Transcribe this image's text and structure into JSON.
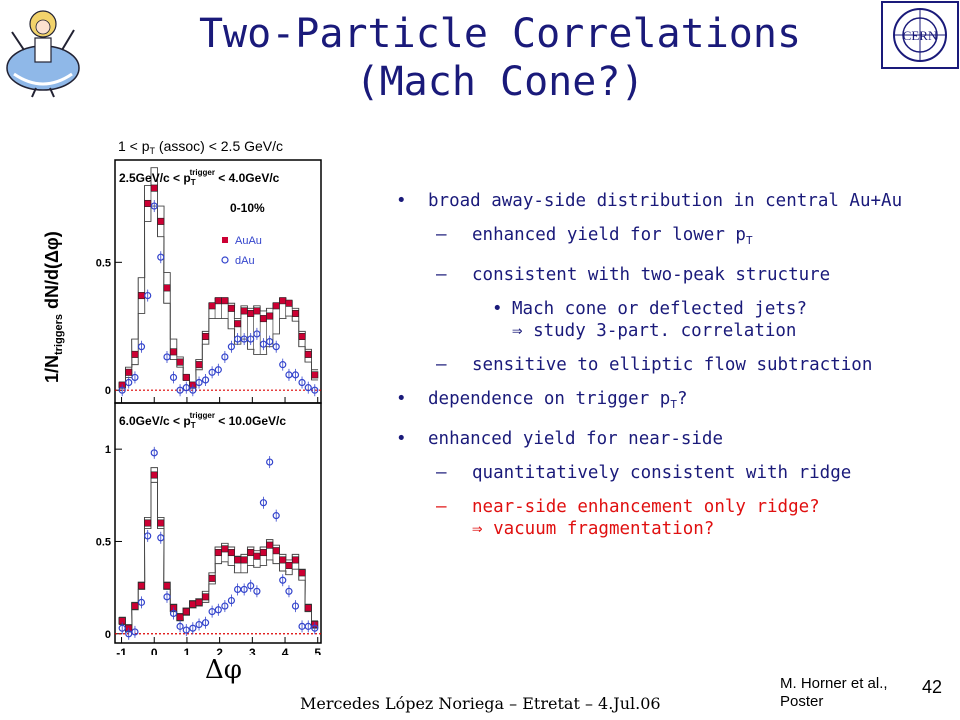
{
  "slide": {
    "title_line1": "Two-Particle Correlations",
    "title_line2": "(Mach Cone?)",
    "footer": "Mercedes López Noriega – Etretat – 4.Jul.06",
    "reference_line1": "M. Horner et al.,",
    "reference_line2": "Poster",
    "page_number": "42"
  },
  "bullets": {
    "b1": "broad away-side distribution in central Au+Au",
    "b1_1_pre": "enhanced yield for lower p",
    "b1_1_sub": "T",
    "b1_2": "consistent with two-peak structure",
    "b1_2_1a": "Mach cone or deflected jets?",
    "b1_2_1b": "⇒ study 3-part. correlation",
    "b1_3": "sensitive to elliptic flow subtraction",
    "b2_pre": "dependence on trigger p",
    "b2_sub": "T",
    "b2_post": "?",
    "b3": "enhanced yield for near-side",
    "b3_1": "quantitatively consistent with ridge",
    "b3_2a": "near-side enhancement only ridge?",
    "b3_2b": "⇒ vacuum fragmentation?",
    "red_color": "#e01010"
  },
  "chart_data": [
    {
      "type": "scatter",
      "header_pre": "1 < p",
      "header_sub": "T",
      "header_post": " (assoc) < 2.5 GeV/c",
      "ylabel_pre": "1/N",
      "ylabel_sub": "triggers",
      "ylabel_post": " dN/d(Δφ)",
      "xlabel": "Δφ",
      "panel_label": "2.5GeV/c < p",
      "panel_label_sub": "T",
      "panel_label_sup": "trigger",
      "panel_label_post": " < 4.0GeV/c",
      "centrality": "0-10%",
      "legend": [
        "AuAu",
        "dAu"
      ],
      "ylim": [
        -0.05,
        0.9
      ],
      "yticks": [
        {
          "v": 0,
          "label": "0"
        },
        {
          "v": 0.5,
          "label": "0.5"
        }
      ],
      "xlim": [
        -1.2,
        5.1
      ],
      "x": [
        -0.98,
        -0.78,
        -0.59,
        -0.39,
        -0.2,
        0.0,
        0.2,
        0.39,
        0.59,
        0.79,
        0.98,
        1.18,
        1.37,
        1.57,
        1.77,
        1.96,
        2.16,
        2.36,
        2.55,
        2.75,
        2.95,
        3.14,
        3.34,
        3.53,
        3.73,
        3.93,
        4.12,
        4.32,
        4.52,
        4.71,
        4.91
      ],
      "series": [
        {
          "name": "AuAu",
          "color": "#cc0033",
          "marker": "square",
          "values": [
            0.02,
            0.07,
            0.14,
            0.37,
            0.73,
            0.79,
            0.66,
            0.4,
            0.15,
            0.11,
            0.05,
            0.02,
            0.1,
            0.21,
            0.33,
            0.35,
            0.35,
            0.32,
            0.26,
            0.31,
            0.3,
            0.31,
            0.28,
            0.29,
            0.33,
            0.35,
            0.34,
            0.3,
            0.21,
            0.14,
            0.06
          ]
        },
        {
          "name": "dAu",
          "color": "#3344cc",
          "marker": "circle",
          "values": [
            0.0,
            0.03,
            0.05,
            0.17,
            0.37,
            0.72,
            0.52,
            0.13,
            0.05,
            0.0,
            0.01,
            0.0,
            0.03,
            0.04,
            0.07,
            0.08,
            0.13,
            0.17,
            0.2,
            0.2,
            0.2,
            0.22,
            0.18,
            0.19,
            0.17,
            0.1,
            0.06,
            0.06,
            0.03,
            0.01,
            0.0
          ]
        }
      ],
      "band_upper": [
        0.03,
        0.09,
        0.2,
        0.44,
        0.8,
        0.87,
        0.72,
        0.46,
        0.2,
        0.13,
        0.06,
        0.03,
        0.12,
        0.23,
        0.34,
        0.36,
        0.36,
        0.34,
        0.28,
        0.33,
        0.32,
        0.33,
        0.31,
        0.32,
        0.34,
        0.36,
        0.35,
        0.32,
        0.23,
        0.16,
        0.08
      ],
      "band_lower": [
        0.01,
        0.05,
        0.1,
        0.3,
        0.66,
        0.72,
        0.6,
        0.34,
        0.12,
        0.09,
        0.04,
        0.01,
        0.08,
        0.18,
        0.28,
        0.28,
        0.28,
        0.24,
        0.18,
        0.2,
        0.16,
        0.14,
        0.14,
        0.17,
        0.22,
        0.28,
        0.29,
        0.27,
        0.17,
        0.11,
        0.04
      ],
      "zero_line": {
        "style": "dotted",
        "color": "#dd0000"
      }
    },
    {
      "type": "scatter",
      "panel_label": "6.0GeV/c < p",
      "panel_label_sub": "T",
      "panel_label_sup": "trigger",
      "panel_label_post": " < 10.0GeV/c",
      "ylim": [
        -0.05,
        1.25
      ],
      "yticks": [
        {
          "v": 0,
          "label": "0"
        },
        {
          "v": 0.5,
          "label": "0.5"
        },
        {
          "v": 1,
          "label": "1"
        }
      ],
      "xlim": [
        -1.2,
        5.1
      ],
      "xticks": [
        {
          "v": -1,
          "label": "-1"
        },
        {
          "v": 0,
          "label": "0"
        },
        {
          "v": 1,
          "label": "1"
        },
        {
          "v": 2,
          "label": "2"
        },
        {
          "v": 3,
          "label": "3"
        },
        {
          "v": 4,
          "label": "4"
        },
        {
          "v": 5,
          "label": "5"
        }
      ],
      "x": [
        -0.98,
        -0.78,
        -0.59,
        -0.39,
        -0.2,
        0.0,
        0.2,
        0.39,
        0.59,
        0.79,
        0.98,
        1.18,
        1.37,
        1.57,
        1.77,
        1.96,
        2.16,
        2.36,
        2.55,
        2.75,
        2.95,
        3.14,
        3.34,
        3.53,
        3.73,
        3.93,
        4.12,
        4.32,
        4.52,
        4.71,
        4.91
      ],
      "series": [
        {
          "name": "AuAu",
          "color": "#cc0033",
          "marker": "square",
          "values": [
            0.07,
            0.03,
            0.15,
            0.26,
            0.6,
            0.86,
            0.6,
            0.26,
            0.14,
            0.09,
            0.12,
            0.16,
            0.17,
            0.2,
            0.3,
            0.44,
            0.46,
            0.44,
            0.4,
            0.4,
            0.44,
            0.42,
            0.44,
            0.48,
            0.45,
            0.4,
            0.37,
            0.4,
            0.33,
            0.14,
            0.05
          ]
        },
        {
          "name": "dAu",
          "color": "#3344cc",
          "marker": "circle",
          "values": [
            0.03,
            0.0,
            0.01,
            0.17,
            0.53,
            0.98,
            0.52,
            0.2,
            0.11,
            0.04,
            0.02,
            0.03,
            0.05,
            0.06,
            0.12,
            0.13,
            0.15,
            0.18,
            0.24,
            0.24,
            0.26,
            0.23,
            0.71,
            0.93,
            0.64,
            0.29,
            0.23,
            0.15,
            0.04,
            0.04,
            0.03
          ]
        }
      ],
      "band_upper": [
        0.09,
        0.05,
        0.17,
        0.28,
        0.63,
        0.9,
        0.63,
        0.28,
        0.16,
        0.11,
        0.14,
        0.18,
        0.19,
        0.23,
        0.33,
        0.47,
        0.49,
        0.47,
        0.42,
        0.43,
        0.47,
        0.45,
        0.47,
        0.51,
        0.48,
        0.43,
        0.4,
        0.43,
        0.35,
        0.16,
        0.07
      ],
      "band_lower": [
        0.05,
        0.01,
        0.13,
        0.24,
        0.57,
        0.82,
        0.57,
        0.24,
        0.12,
        0.07,
        0.1,
        0.14,
        0.15,
        0.17,
        0.27,
        0.38,
        0.39,
        0.37,
        0.33,
        0.33,
        0.37,
        0.36,
        0.37,
        0.4,
        0.38,
        0.34,
        0.32,
        0.35,
        0.29,
        0.12,
        0.03
      ],
      "zero_line": {
        "style": "dotted",
        "color": "#dd0000"
      }
    }
  ]
}
